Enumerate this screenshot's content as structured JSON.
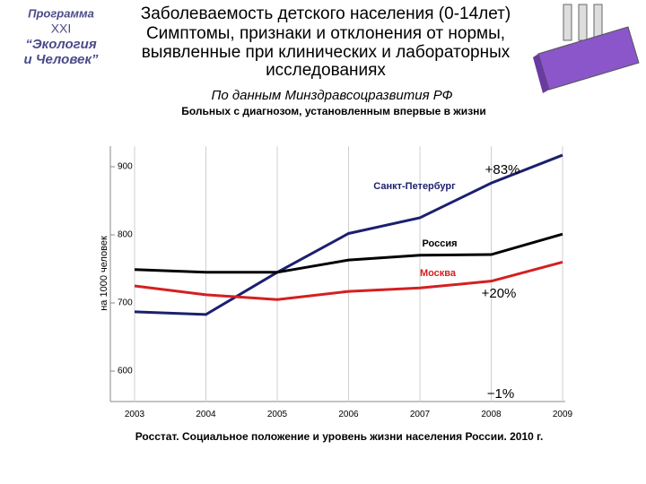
{
  "logo": {
    "lines": [
      "Программа",
      "XXI",
      "“Экология",
      "и Человек”"
    ]
  },
  "chart_data": {
    "type": "line",
    "title": [
      "Заболеваемость детского населения (0-14лет)",
      "Симптомы, признаки и отклонения от нормы,",
      "выявленные при клинических и лабораторных",
      "исследованиях"
    ],
    "subtitle": "По данным Минздравсоцразвития РФ",
    "chart_title": "Больных с диагнозом, установленным впервые в жизни",
    "y_label": "на 1000 человек",
    "source": "Росстат. Социальное положение и уровень жизни населения России. 2010 г.",
    "x": [
      2003,
      2004,
      2005,
      2006,
      2007,
      2008,
      2009
    ],
    "xlim": [
      2003,
      2009
    ],
    "xticks": [
      2003,
      2004,
      2005,
      2006,
      2007,
      2008,
      2009
    ],
    "ylim": [
      555,
      930
    ],
    "yticks": [
      600,
      700,
      800,
      900
    ],
    "grid": true,
    "series": [
      {
        "name": "Санкт-Петербург",
        "color": "#1c1f6e",
        "values": [
          687,
          683,
          745,
          802,
          825,
          876,
          917
        ]
      },
      {
        "name": "Россия",
        "color": "#000000",
        "values": [
          749,
          745,
          745,
          763,
          770,
          771,
          801
        ]
      },
      {
        "name": "Москва",
        "color": "#d42020",
        "values": [
          725,
          712,
          705,
          717,
          722,
          732,
          760
        ]
      }
    ],
    "annotations": [
      "+83%",
      "+20%",
      "−1%"
    ]
  }
}
